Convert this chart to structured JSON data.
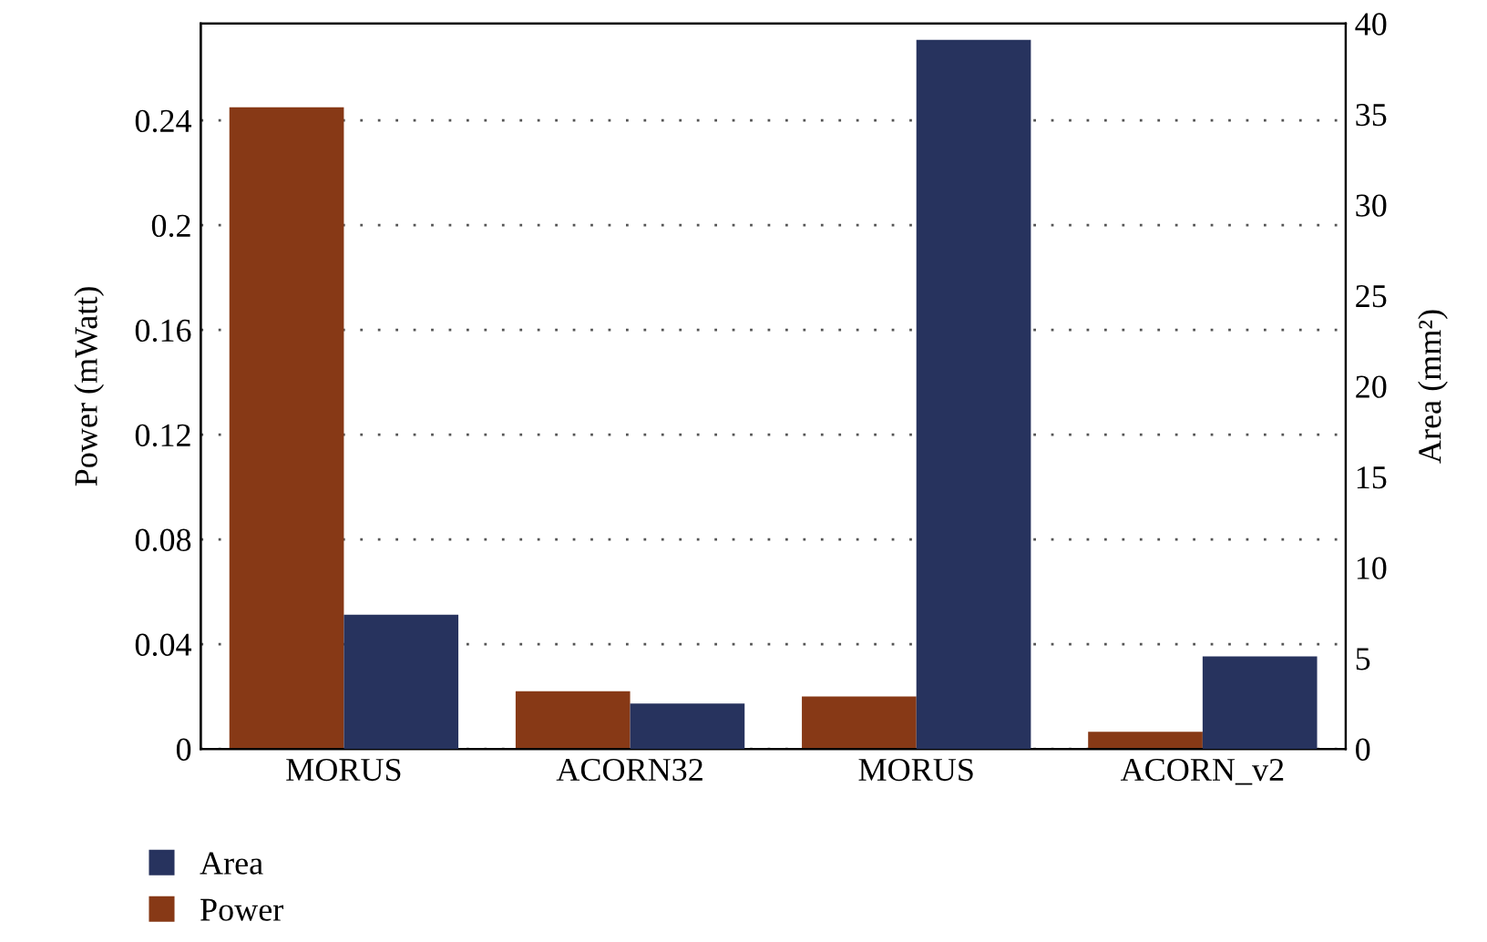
{
  "chart_data": {
    "type": "bar",
    "ylabel": "Power (mWatt)",
    "y2label": "Area (mm²)",
    "categories": [
      "MORUS",
      "ACORN32",
      "MORUS",
      "ACORN_v2"
    ],
    "series": [
      {
        "name": "Power",
        "color": "#873916",
        "values": [
          0.245,
          0.022,
          0.02,
          0.0065
        ]
      },
      {
        "name": "Area",
        "color": "#27335e",
        "axis": "y2",
        "values": [
          7.4,
          2.5,
          39.1,
          5.1
        ]
      }
    ],
    "ylim": [
      0,
      0.277
    ],
    "yticks": [
      0,
      0.04,
      0.08,
      0.12,
      0.16,
      0.2,
      0.24
    ],
    "y2lim": [
      0,
      40
    ],
    "y2ticks": [
      0,
      5,
      10,
      15,
      20,
      25,
      30,
      35,
      40
    ],
    "grid": "y",
    "legend": "bottom left"
  }
}
